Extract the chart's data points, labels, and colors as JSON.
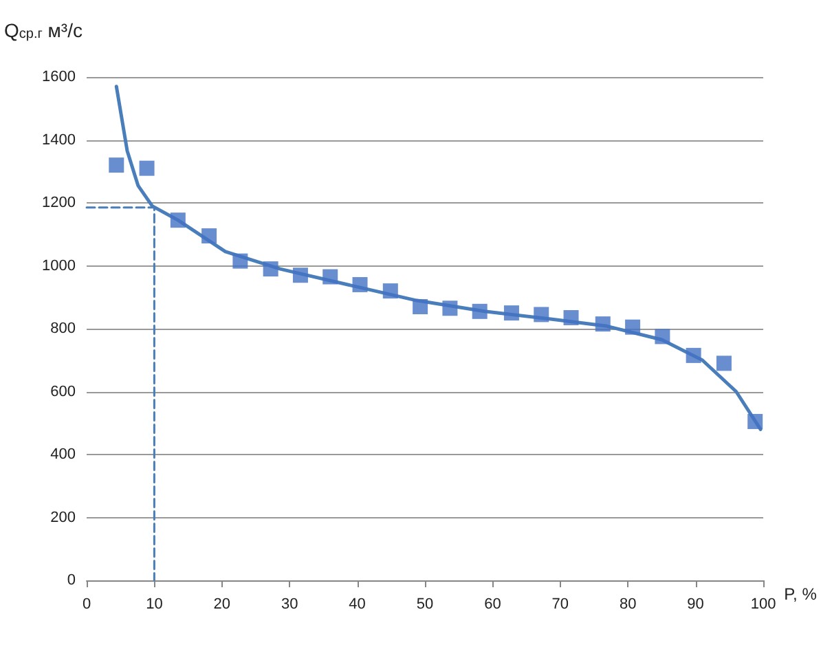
{
  "chart_data": {
    "type": "scatter",
    "xlabel": "P, %",
    "ylabel": "Q$_{ср.г}$ м³/с",
    "xlim": [
      0,
      100
    ],
    "xticks": [
      0,
      10,
      20,
      30,
      40,
      50,
      60,
      70,
      80,
      90,
      100
    ],
    "ylim": [
      0,
      1600
    ],
    "yticks": [
      0,
      200,
      400,
      600,
      800,
      1000,
      1200,
      1400,
      1600
    ],
    "grid": "y",
    "marker": "square",
    "series": [
      {
        "color": "#4472c4",
        "x": [
          4.4,
          8.9,
          13.5,
          18.1,
          22.7,
          27.2,
          31.6,
          36,
          40.4,
          44.9,
          49.3,
          53.7,
          58.1,
          62.8,
          67.2,
          71.6,
          76.3,
          80.7,
          85.1,
          89.7,
          94.2,
          98.8
        ],
        "values": [
          1320,
          1310,
          1145,
          1095,
          1015,
          990,
          970,
          965,
          940,
          920,
          870,
          865,
          855,
          850,
          845,
          835,
          815,
          805,
          775,
          715,
          690,
          505
        ]
      },
      {
        "type": "line",
        "color": "#4a7ebb",
        "marker": "none",
        "line_style": "solid",
        "x": [
          4.4,
          6,
          7.6,
          9.7,
          13.5,
          20.5,
          28.6,
          38.6,
          48.7,
          58.8,
          68.8,
          76.9,
          85,
          91,
          96,
          99.6
        ],
        "values": [
          1570,
          1365,
          1255,
          1190,
          1145,
          1045,
          990,
          940,
          890,
          855,
          830,
          808,
          765,
          700,
          600,
          480
        ]
      },
      {
        "type": "line",
        "color": "#4a7ebb",
        "marker": "none",
        "line_style": "dashed",
        "x": [
          0,
          10,
          10
        ],
        "values": [
          1185,
          1185,
          0
        ]
      }
    ]
  }
}
